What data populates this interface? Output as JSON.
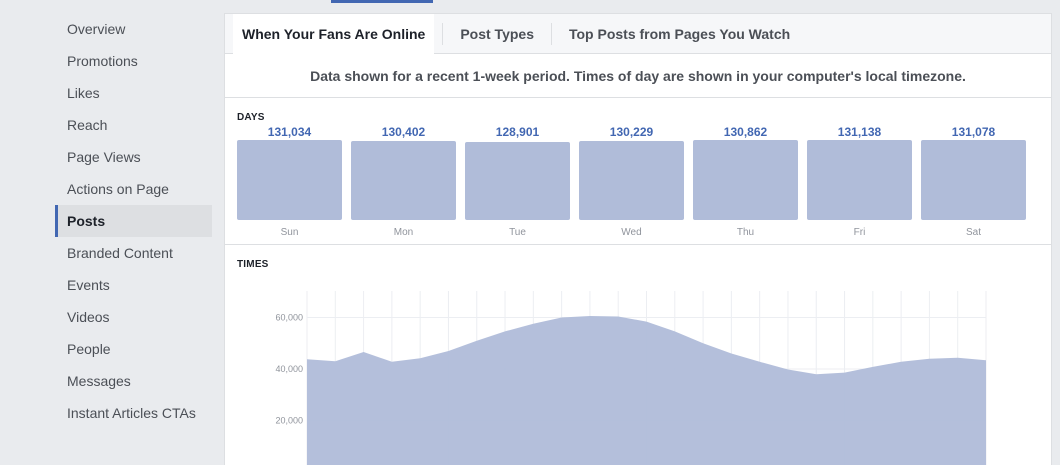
{
  "sidebar": {
    "items": [
      {
        "label": "Overview",
        "name": "sidebar-item-overview",
        "active": false
      },
      {
        "label": "Promotions",
        "name": "sidebar-item-promotions",
        "active": false
      },
      {
        "label": "Likes",
        "name": "sidebar-item-likes",
        "active": false
      },
      {
        "label": "Reach",
        "name": "sidebar-item-reach",
        "active": false
      },
      {
        "label": "Page Views",
        "name": "sidebar-item-page-views",
        "active": false
      },
      {
        "label": "Actions on Page",
        "name": "sidebar-item-actions-on-page",
        "active": false
      },
      {
        "label": "Posts",
        "name": "sidebar-item-posts",
        "active": true
      },
      {
        "label": "Branded Content",
        "name": "sidebar-item-branded-content",
        "active": false
      },
      {
        "label": "Events",
        "name": "sidebar-item-events",
        "active": false
      },
      {
        "label": "Videos",
        "name": "sidebar-item-videos",
        "active": false
      },
      {
        "label": "People",
        "name": "sidebar-item-people",
        "active": false
      },
      {
        "label": "Messages",
        "name": "sidebar-item-messages",
        "active": false
      },
      {
        "label": "Instant Articles CTAs",
        "name": "sidebar-item-instant-articles-ctas",
        "active": false
      }
    ]
  },
  "tabs": [
    {
      "label": "When Your Fans Are Online",
      "active": true
    },
    {
      "label": "Post Types",
      "active": false
    },
    {
      "label": "Top Posts from Pages You Watch",
      "active": false
    }
  ],
  "notice": "Data shown for a recent 1-week period. Times of day are shown in your computer's local timezone.",
  "colors": {
    "accent": "#4267b2",
    "bar": "#b0bcd9",
    "area": "#b0bcd9"
  },
  "chart_data": [
    {
      "type": "bar",
      "title": "DAYS",
      "categories": [
        "Sun",
        "Mon",
        "Tue",
        "Wed",
        "Thu",
        "Fri",
        "Sat"
      ],
      "values": [
        131034,
        130402,
        128901,
        130229,
        130862,
        131138,
        131078
      ],
      "value_labels": [
        "131,034",
        "130,402",
        "128,901",
        "130,229",
        "130,862",
        "131,138",
        "131,078"
      ],
      "ylim": [
        0,
        131138
      ]
    },
    {
      "type": "area",
      "title": "TIMES",
      "x": [
        0,
        1,
        2,
        3,
        4,
        5,
        6,
        7,
        8,
        9,
        10,
        11,
        12,
        13,
        14,
        15,
        16,
        17,
        18,
        19,
        20,
        21,
        22,
        23,
        24
      ],
      "values": [
        43800,
        43000,
        46600,
        42800,
        44200,
        47000,
        51000,
        54600,
        57600,
        60000,
        60600,
        60400,
        58400,
        54600,
        50000,
        46000,
        42800,
        39800,
        38000,
        38600,
        40800,
        42800,
        44000,
        44400,
        43400
      ],
      "yticks": [
        20000,
        40000,
        60000
      ],
      "ytick_labels": [
        "20,000",
        "40,000",
        "60,000"
      ],
      "grid": true
    }
  ]
}
